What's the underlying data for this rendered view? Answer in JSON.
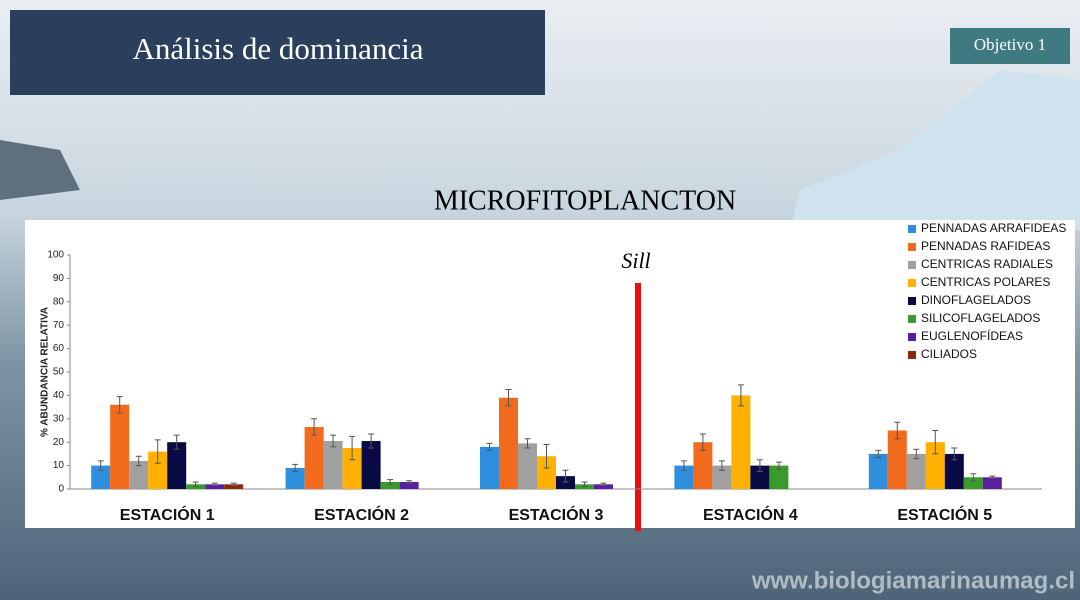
{
  "header": {
    "title": "Análisis de dominancia",
    "badge": "Objetivo 1"
  },
  "footer": {
    "watermark": "www.biologiamarinaumag.cl"
  },
  "chart_data": {
    "type": "bar",
    "title": "MICROFITOPLANCTON",
    "y_label": "% ABUNDANCIA RELATIVA",
    "annotation": "Sill",
    "categories": [
      "ESTACIÓN 1",
      "ESTACIÓN 2",
      "ESTACIÓN 3",
      "ESTACIÓN 4",
      "ESTACIÓN 5"
    ],
    "ylim": [
      0,
      100
    ],
    "yticks": [
      0,
      10,
      20,
      30,
      40,
      50,
      60,
      70,
      80,
      90,
      100
    ],
    "grid": false,
    "legend": "top-right",
    "series": [
      {
        "name": "PENNADAS ARRAFIDEAS",
        "color": "#2e8fde",
        "values": [
          10,
          9,
          18,
          10,
          15
        ],
        "errors": [
          2,
          1.5,
          1.5,
          2,
          1.5
        ]
      },
      {
        "name": "PENNADAS RAFIDEAS",
        "color": "#f26b1d",
        "values": [
          36,
          26.5,
          39,
          20,
          25
        ],
        "errors": [
          3.5,
          3.5,
          3.5,
          3.5,
          3.5
        ]
      },
      {
        "name": "CENTRICAS RADIALES",
        "color": "#a0a0a0",
        "values": [
          12,
          20.5,
          19.5,
          10,
          15
        ],
        "errors": [
          2,
          2.5,
          2,
          2,
          2
        ]
      },
      {
        "name": "CENTRICAS POLARES",
        "color": "#ffb000",
        "values": [
          16,
          17.5,
          14,
          40,
          20
        ],
        "errors": [
          5,
          5,
          5,
          4.5,
          5
        ]
      },
      {
        "name": "DINOFLAGELADOS",
        "color": "#0a0a46",
        "values": [
          20,
          20.5,
          5.5,
          10,
          15
        ],
        "errors": [
          3,
          3,
          2.5,
          2.5,
          2.5
        ]
      },
      {
        "name": "SILICOFLAGELADOS",
        "color": "#3a9a2a",
        "values": [
          2,
          3,
          2,
          10,
          5
        ],
        "errors": [
          1,
          1,
          1,
          1.5,
          1.5
        ]
      },
      {
        "name": "EUGLENOFÍDEAS",
        "color": "#5a1fa0",
        "values": [
          2,
          3,
          2,
          0,
          5
        ],
        "errors": [
          0.5,
          0.5,
          0.5,
          0,
          0.5
        ]
      },
      {
        "name": "CILIADOS",
        "color": "#8b2a0a",
        "values": [
          2,
          0,
          0,
          0,
          0
        ],
        "errors": [
          0.5,
          0,
          0,
          0,
          0
        ]
      }
    ]
  }
}
